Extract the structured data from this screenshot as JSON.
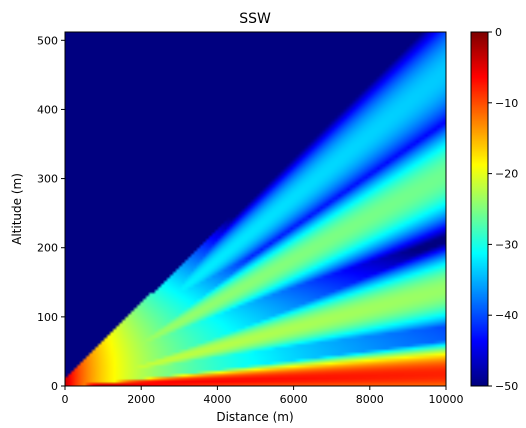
{
  "chart_data": {
    "type": "heatmap",
    "title": "SSW",
    "xlabel": "Distance (m)",
    "ylabel": "Altitude (m)",
    "xlim": [
      0,
      10000
    ],
    "ylim": [
      0,
      512
    ],
    "x_ticks": [
      0,
      2000,
      4000,
      6000,
      8000,
      10000
    ],
    "y_ticks": [
      0,
      100,
      200,
      300,
      400,
      500
    ],
    "colorbar": {
      "colormap": "jet",
      "range": [
        -50,
        0
      ],
      "ticks": [
        0,
        -10,
        -20,
        -30,
        -40,
        -50
      ],
      "tick_labels": [
        "0",
        "−10",
        "−20",
        "−30",
        "−40",
        "−50"
      ]
    },
    "source": {
      "altitude_m": 20
    },
    "field_db": {
      "description_note": "",
      "lobes": [
        {
          "elevation_deg": 0.1,
          "peak_db": -4
        },
        {
          "elevation_deg": 0.8,
          "peak_db": -20
        },
        {
          "elevation_deg": 1.75,
          "peak_db": -22
        },
        {
          "elevation_deg": 2.6,
          "peak_db": -30
        }
      ],
      "floor_db": -50
    }
  }
}
